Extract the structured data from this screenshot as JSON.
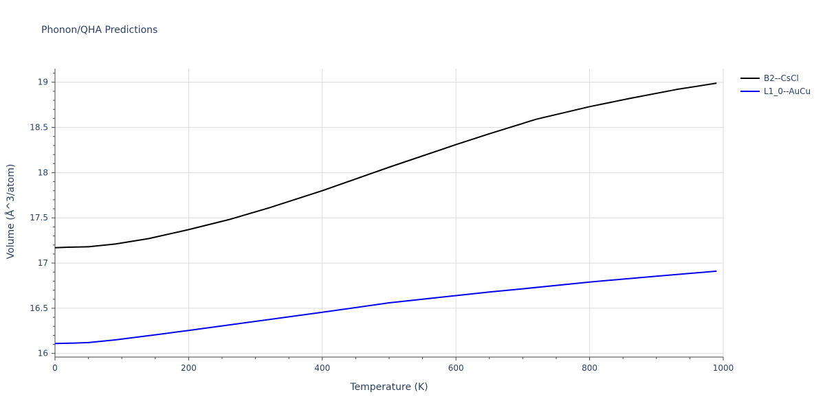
{
  "chart_data": {
    "type": "line",
    "title": "Phonon/QHA Predictions",
    "xlabel": "Temperature (K)",
    "ylabel": "Volume (Å^3/atom)",
    "xlim": [
      0,
      1000
    ],
    "ylim": [
      15.96,
      19.15
    ],
    "x_ticks": [
      0,
      200,
      400,
      600,
      800,
      1000
    ],
    "x_tick_labels": [
      "0",
      "200",
      "400",
      "600",
      "800",
      "1000"
    ],
    "y_ticks": [
      16,
      16.5,
      17,
      17.5,
      18,
      18.5,
      19
    ],
    "y_tick_labels": [
      "16",
      "16.5",
      "17",
      "17.5",
      "18",
      "18.5",
      "19"
    ],
    "grid": true,
    "legend_position": "top-right",
    "series": [
      {
        "name": "B2--CsCl",
        "color": "#000000",
        "x": [
          0,
          20,
          50,
          90,
          140,
          200,
          260,
          320,
          400,
          500,
          600,
          650,
          720,
          800,
          860,
          930,
          990
        ],
        "y": [
          17.17,
          17.175,
          17.18,
          17.21,
          17.27,
          17.37,
          17.48,
          17.61,
          17.8,
          18.06,
          18.31,
          18.43,
          18.59,
          18.73,
          18.82,
          18.92,
          18.99
        ]
      },
      {
        "name": "L1_0--AuCu",
        "color": "#0000ee",
        "x": [
          0,
          30,
          50,
          90,
          160,
          200,
          250,
          300,
          400,
          500,
          600,
          650,
          700,
          800,
          900,
          990
        ],
        "y": [
          16.11,
          16.115,
          16.12,
          16.15,
          16.215,
          16.255,
          16.305,
          16.355,
          16.455,
          16.56,
          16.64,
          16.68,
          16.715,
          16.79,
          16.855,
          16.91
        ]
      }
    ]
  }
}
